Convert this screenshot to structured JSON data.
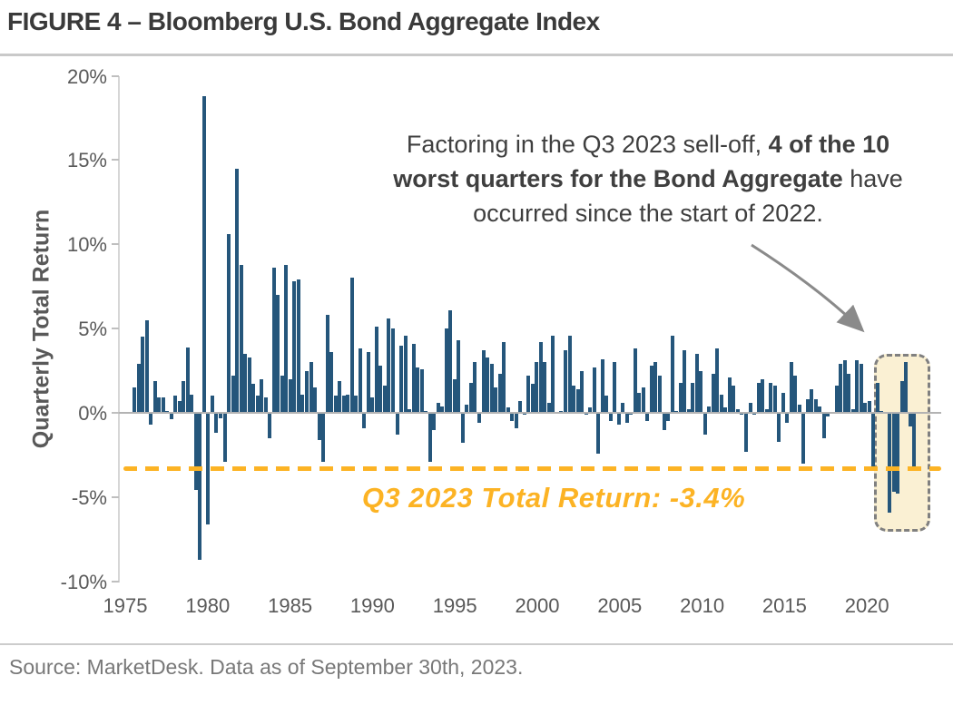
{
  "title": "FIGURE 4 – Bloomberg U.S. Bond Aggregate Index",
  "source": "Source: MarketDesk. Data as of September 30th, 2023.",
  "annotation": {
    "line1_regular": "Factoring in the Q3 2023 sell-off, ",
    "line1_bold": "4 of the",
    "line2_bold": "10 worst quarters for the Bond Aggregate",
    "line3_regular": "have occurred since the start of 2022."
  },
  "callout": {
    "label": "Q3 2023 Total Return: -3.4%",
    "value_pct": -3.4
  },
  "colors": {
    "bar": "#25567B",
    "reference_line": "#FCB324",
    "highlight_fill": "#FAF0D3",
    "highlight_border": "#808080",
    "arrow": "#8a8a8a",
    "axis_text": "#595959",
    "title_text": "#3a3a3a"
  },
  "chart_data": {
    "type": "bar",
    "title": "Bloomberg U.S. Bond Aggregate Index",
    "ylabel": "Quarterly Total Return",
    "xlabel": "",
    "ylim": [
      -10,
      20
    ],
    "y_tick_values": [
      20,
      15,
      10,
      5,
      0,
      -5,
      -10
    ],
    "y_tick_labels": [
      "20%",
      "15%",
      "10%",
      "5%",
      "0%",
      "-5%",
      "-10%"
    ],
    "x_tick_labels": [
      "1975",
      "1980",
      "1985",
      "1990",
      "1995",
      "2000",
      "2005",
      "2010",
      "2015",
      "2020"
    ],
    "grid": false,
    "legend": false,
    "series_name": "Quarterly total return (%)",
    "start_year": 1976,
    "start_quarter": "1976-Q1",
    "end_quarter": "2023-Q3",
    "values": [
      1.5,
      2.9,
      4.5,
      5.5,
      -0.7,
      1.9,
      0.9,
      0.9,
      0.1,
      -0.4,
      1.0,
      0.7,
      1.9,
      3.9,
      1.1,
      -4.6,
      -8.7,
      18.8,
      -6.6,
      1.0,
      -1.2,
      -0.3,
      -2.9,
      10.6,
      2.2,
      14.5,
      8.8,
      3.5,
      3.3,
      1.7,
      1.0,
      2.0,
      0.9,
      -1.5,
      8.6,
      7.0,
      2.2,
      8.8,
      2.0,
      7.8,
      7.9,
      1.1,
      2.5,
      3.0,
      1.5,
      -1.6,
      -2.9,
      5.8,
      3.6,
      1.0,
      1.9,
      1.0,
      1.1,
      8.0,
      1.0,
      3.8,
      -0.9,
      3.6,
      0.9,
      5.1,
      2.8,
      1.6,
      5.6,
      5.0,
      -1.3,
      4.0,
      4.6,
      0.2,
      4.1,
      2.7,
      2.6,
      0.1,
      -2.9,
      -1.0,
      0.6,
      0.4,
      5.0,
      6.1,
      2.0,
      4.3,
      -1.8,
      0.5,
      1.8,
      3.0,
      -0.6,
      3.7,
      3.3,
      2.9,
      1.5,
      2.3,
      4.2,
      0.3,
      -0.5,
      -0.9,
      0.7,
      -0.1,
      2.2,
      1.7,
      3.0,
      4.2,
      3.0,
      0.6,
      4.6,
      0.0,
      0.1,
      3.7,
      4.6,
      1.6,
      1.4,
      2.5,
      -0.1,
      0.3,
      2.7,
      -2.4,
      3.2,
      1.0,
      -0.5,
      3.0,
      -0.7,
      0.6,
      -0.6,
      -0.1,
      3.8,
      1.2,
      1.5,
      -0.5,
      2.8,
      3.0,
      2.2,
      -1.0,
      -0.5,
      4.6,
      0.1,
      1.8,
      3.7,
      0.2,
      1.8,
      3.5,
      2.5,
      -1.3,
      0.4,
      2.3,
      3.8,
      1.1,
      0.3,
      2.1,
      1.6,
      0.2,
      -0.1,
      -2.3,
      0.6,
      -0.1,
      1.8,
      2.0,
      0.2,
      1.8,
      1.6,
      -1.7,
      1.2,
      -0.6,
      3.0,
      2.2,
      0.5,
      -3.0,
      0.8,
      1.4,
      0.8,
      0.4,
      -1.5,
      -0.2,
      0.0,
      1.6,
      2.9,
      3.1,
      2.3,
      0.2,
      3.1,
      2.9,
      0.6,
      0.7,
      -3.4,
      1.8,
      0.1,
      0.0,
      -5.9,
      -4.7,
      -4.8,
      1.9,
      3.0,
      -0.8,
      -3.4
    ],
    "reference_line": {
      "value": -3.4,
      "label": "Q3 2023 Total Return: -3.4%"
    },
    "highlight": {
      "from_quarter": "2022-Q1",
      "to_quarter": "2023-Q3",
      "note": "4 of the 10 worst quarters occurred since start of 2022"
    }
  }
}
